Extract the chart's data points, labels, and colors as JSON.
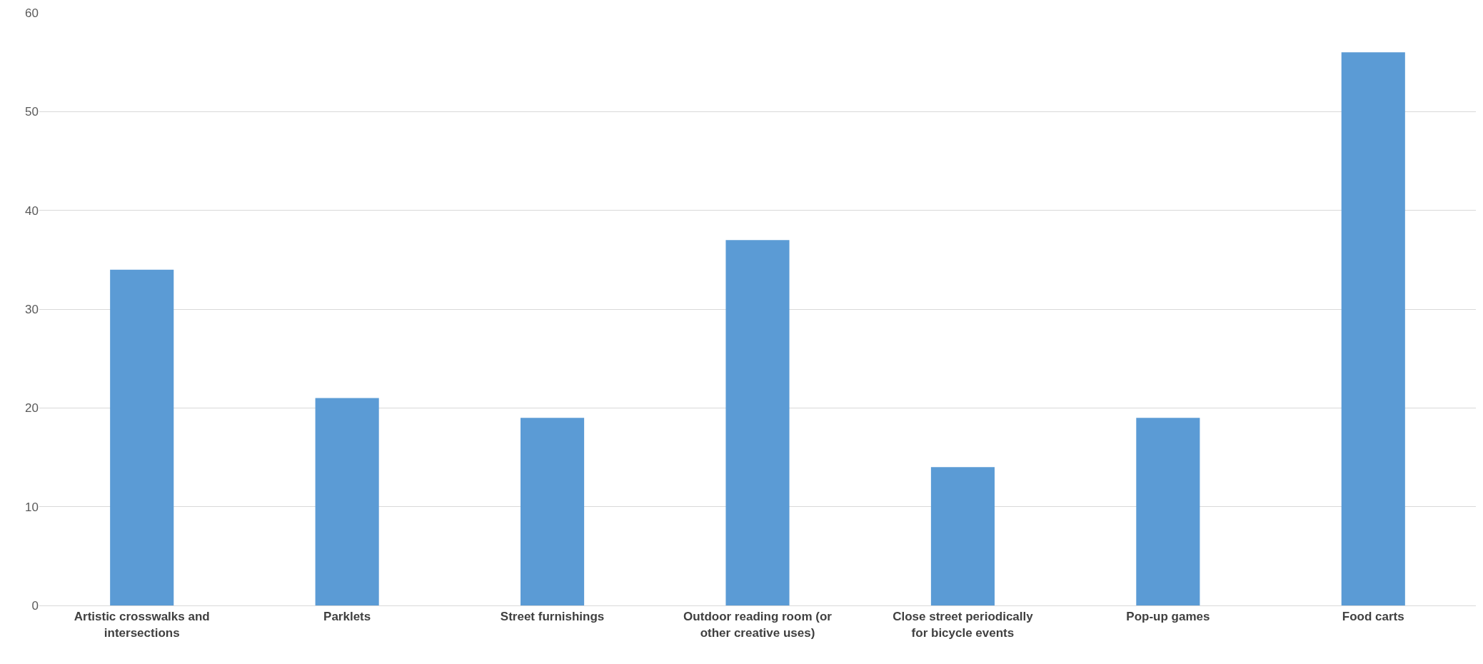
{
  "chart_data": {
    "type": "bar",
    "categories": [
      "Artistic crosswalks and intersections",
      "Parklets",
      "Street furnishings",
      "Outdoor reading room (or other creative uses)",
      "Close street periodically for bicycle events",
      "Pop-up games",
      "Food carts"
    ],
    "values": [
      34,
      21,
      19,
      37,
      14,
      19,
      56
    ],
    "color": "#5b9bd5",
    "ylim": [
      0,
      60
    ],
    "yticks": [
      0,
      10,
      20,
      30,
      40,
      50,
      60
    ],
    "grid": "y",
    "legend": false
  }
}
